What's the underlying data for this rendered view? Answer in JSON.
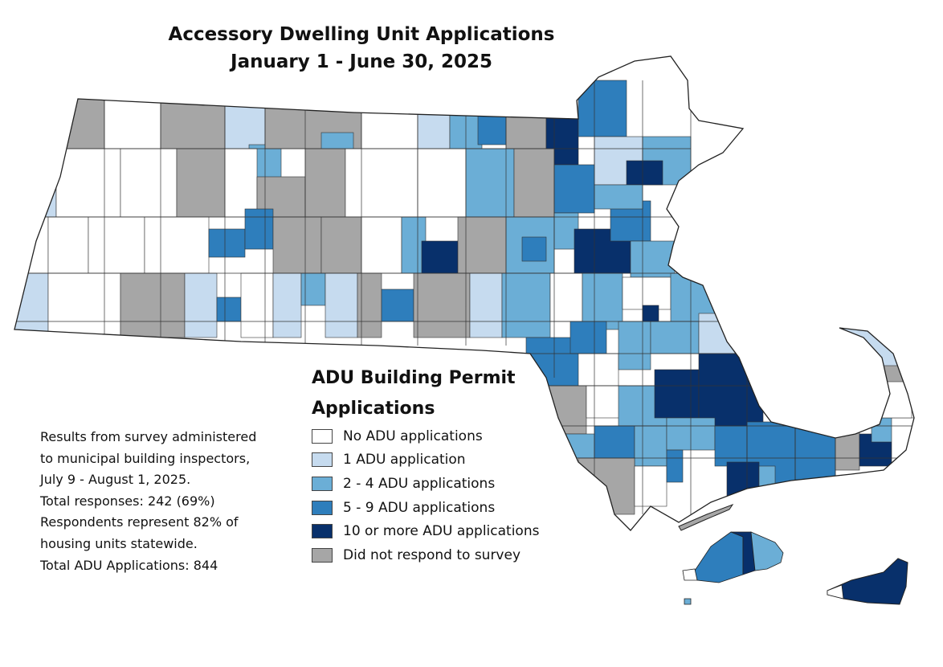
{
  "title": {
    "line1": "Accessory Dwelling Unit Applications",
    "line2": "January 1 - June 30, 2025"
  },
  "legend": {
    "title_line1": "ADU Building Permit",
    "title_line2": "Applications",
    "items": [
      {
        "label": "No ADU applications",
        "color": "#ffffff"
      },
      {
        "label": "1 ADU application",
        "color": "#c6dbef"
      },
      {
        "label": "2 - 4 ADU applications",
        "color": "#6baed6"
      },
      {
        "label": "5 - 9 ADU applications",
        "color": "#2e7ebc"
      },
      {
        "label": "10 or more ADU applications",
        "color": "#08306b"
      },
      {
        "label": "Did not respond to survey",
        "color": "#a6a6a6"
      }
    ]
  },
  "notes": {
    "line1": "Results from survey administered",
    "line2": "to municipal building inspectors,",
    "line3": "July 9 - August 1, 2025.",
    "line4": "Total responses: 242 (69%)",
    "line5": "Respondents represent 82% of",
    "line6": "housing units statewide.",
    "line7": "Total ADU Applications: 844"
  },
  "colors": {
    "none": "#ffffff",
    "one": "#c6dbef",
    "two_four": "#6baed6",
    "five_nine": "#2e7ebc",
    "ten_plus": "#08306b",
    "no_response": "#a6a6a6",
    "boundary": "#333333"
  }
}
